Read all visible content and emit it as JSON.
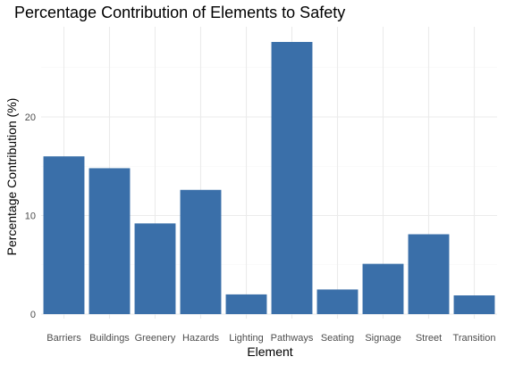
{
  "chart_data": {
    "type": "bar",
    "title": "Percentage Contribution of Elements to Safety",
    "xlabel": "Element",
    "ylabel": "Percentage Contribution (%)",
    "categories": [
      "Barriers",
      "Buildings",
      "Greenery",
      "Hazards",
      "Lighting",
      "Pathways",
      "Seating",
      "Signage",
      "Street",
      "Transition"
    ],
    "values": [
      16.0,
      14.8,
      9.2,
      12.6,
      2.0,
      27.6,
      2.5,
      5.1,
      8.1,
      1.9
    ],
    "ylim": [
      0,
      29
    ],
    "yticks": [
      0,
      10,
      20
    ],
    "bar_color": "#3a6fa9",
    "grid": true,
    "legend": "none"
  }
}
